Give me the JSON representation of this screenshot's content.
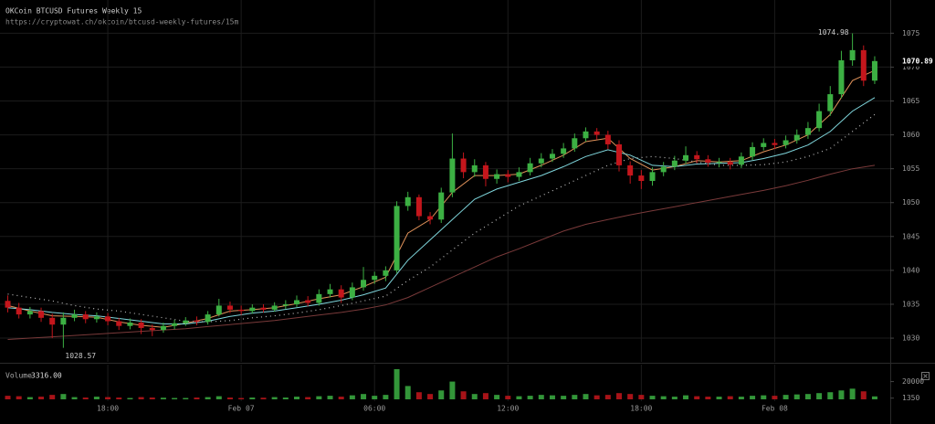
{
  "chart_data": {
    "type": "candlestick",
    "title": "OKCoin BTCUSD Futures Weekly 15",
    "subtitle": "https://cryptowat.ch/okcoin/btcusd-weekly-futures/15m",
    "up_color": "#3cb043",
    "down_color": "#c4161c",
    "grid": true,
    "xlim": [
      -4.85,
      35.2
    ],
    "xticks": [
      {
        "value": 0,
        "label": "18:00"
      },
      {
        "value": 6,
        "label": "Feb 07"
      },
      {
        "value": 12,
        "label": "06:00"
      },
      {
        "value": 18,
        "label": "12:00"
      },
      {
        "value": 24,
        "label": "18:00"
      },
      {
        "value": 30,
        "label": "Feb 08"
      }
    ],
    "ylim": [
      1026.5,
      1079.9
    ],
    "yticks": [
      1030,
      1035,
      1040,
      1045,
      1050,
      1055,
      1060,
      1065,
      1070,
      1075
    ],
    "x": [
      -4.5,
      -4,
      -3.5,
      -3,
      -2.5,
      -2,
      -1.5,
      -1,
      -0.5,
      0,
      0.5,
      1,
      1.5,
      2,
      2.5,
      3,
      3.5,
      4,
      4.5,
      5,
      5.5,
      6,
      6.5,
      7,
      7.5,
      8,
      8.5,
      9,
      9.5,
      10,
      10.5,
      11,
      11.5,
      12,
      12.5,
      13,
      13.5,
      14,
      14.5,
      15,
      15.5,
      16,
      16.5,
      17,
      17.5,
      18,
      18.5,
      19,
      19.5,
      20,
      20.5,
      21,
      21.5,
      22,
      22.5,
      23,
      23.5,
      24,
      24.5,
      25,
      25.5,
      26,
      26.5,
      27,
      27.5,
      28,
      28.5,
      29,
      29.5,
      30,
      30.5,
      31,
      31.5,
      32,
      32.5,
      33,
      33.5,
      34,
      34.5
    ],
    "open": [
      1035.5,
      1034.5,
      1033.5,
      1034,
      1033,
      1032,
      1033,
      1033.5,
      1032.8,
      1033.2,
      1032.5,
      1031.8,
      1032.3,
      1031.5,
      1031.2,
      1031.8,
      1032.2,
      1032.6,
      1032.4,
      1033.5,
      1034.8,
      1034.2,
      1034.0,
      1034.5,
      1034.2,
      1034.8,
      1035.0,
      1035.6,
      1035.2,
      1036.5,
      1037.2,
      1036.0,
      1037.5,
      1038.6,
      1039.2,
      1040.0,
      1049.5,
      1050.8,
      1048.0,
      1047.5,
      1051.5,
      1056.5,
      1054.5,
      1055.5,
      1053.5,
      1054.2,
      1053.8,
      1054.5,
      1055.8,
      1056.5,
      1057.2,
      1058.0,
      1059.5,
      1060.5,
      1060.0,
      1058.6,
      1055.5,
      1054.0,
      1053.2,
      1054.5,
      1055.3,
      1056.2,
      1057.0,
      1056.4,
      1055.9,
      1056.0,
      1055.6,
      1056.8,
      1058.2,
      1058.8,
      1058.5,
      1059.2,
      1060.0,
      1061.0,
      1063.5,
      1066.0,
      1071.0,
      1072.5,
      1068.0
    ],
    "high": [
      1036.3,
      1035.2,
      1034.6,
      1034.5,
      1033.6,
      1033.8,
      1034.2,
      1034.0,
      1033.8,
      1033.7,
      1033.0,
      1032.9,
      1032.8,
      1032.0,
      1032.3,
      1032.7,
      1033.1,
      1033.2,
      1034.0,
      1035.8,
      1035.4,
      1034.8,
      1035.0,
      1035.0,
      1035.3,
      1035.6,
      1036.3,
      1036.2,
      1037.2,
      1038.0,
      1037.8,
      1038.2,
      1040.5,
      1039.8,
      1040.6,
      1050.2,
      1051.6,
      1051.2,
      1048.6,
      1052.2,
      1060.2,
      1057.4,
      1056.4,
      1056.0,
      1054.9,
      1054.8,
      1055.2,
      1056.6,
      1057.3,
      1057.9,
      1058.8,
      1060.2,
      1061.1,
      1061.0,
      1060.6,
      1059.2,
      1056.1,
      1054.8,
      1055.2,
      1056.0,
      1056.9,
      1058.3,
      1057.6,
      1057.0,
      1056.6,
      1056.6,
      1057.4,
      1058.9,
      1059.5,
      1059.4,
      1059.9,
      1060.8,
      1061.9,
      1064.6,
      1067.2,
      1072.4,
      1074.98,
      1073.2,
      1071.6
    ],
    "low": [
      1033.8,
      1032.9,
      1032.9,
      1032.4,
      1030.0,
      1028.57,
      1032.5,
      1032.2,
      1032.3,
      1031.9,
      1031.2,
      1031.3,
      1030.6,
      1030.3,
      1030.8,
      1031.3,
      1031.8,
      1031.9,
      1032.0,
      1033.2,
      1033.7,
      1033.4,
      1033.6,
      1033.8,
      1033.9,
      1034.3,
      1034.6,
      1034.7,
      1034.8,
      1036.0,
      1035.2,
      1035.6,
      1037.0,
      1038.0,
      1038.4,
      1039.6,
      1048.8,
      1047.4,
      1046.8,
      1047.0,
      1050.8,
      1053.6,
      1053.8,
      1052.4,
      1052.8,
      1053.0,
      1053.2,
      1054.0,
      1055.2,
      1056.0,
      1056.6,
      1057.5,
      1059.0,
      1059.3,
      1057.9,
      1054.6,
      1052.8,
      1052.0,
      1052.5,
      1053.9,
      1054.8,
      1055.7,
      1055.8,
      1055.3,
      1055.2,
      1054.9,
      1055.1,
      1056.3,
      1057.7,
      1057.9,
      1058.0,
      1058.7,
      1059.4,
      1060.5,
      1062.8,
      1065.4,
      1070.2,
      1067.2,
      1067.5
    ],
    "close": [
      1034.5,
      1033.5,
      1034,
      1033,
      1032,
      1033,
      1033.5,
      1032.8,
      1033.2,
      1032.5,
      1031.8,
      1032.3,
      1031.5,
      1031.2,
      1031.8,
      1032.2,
      1032.6,
      1032.4,
      1033.5,
      1034.8,
      1034.2,
      1034.0,
      1034.5,
      1034.2,
      1034.8,
      1035.0,
      1035.6,
      1035.2,
      1036.5,
      1037.2,
      1036.0,
      1037.5,
      1038.6,
      1039.2,
      1040.0,
      1049.5,
      1050.8,
      1048.0,
      1047.5,
      1051.5,
      1056.5,
      1054.5,
      1055.5,
      1053.5,
      1054.2,
      1053.8,
      1054.5,
      1055.8,
      1056.5,
      1057.2,
      1058.0,
      1059.5,
      1060.5,
      1060.0,
      1058.6,
      1055.5,
      1054.0,
      1053.2,
      1054.5,
      1055.3,
      1056.2,
      1057.0,
      1056.4,
      1055.9,
      1056.0,
      1055.6,
      1056.8,
      1058.2,
      1058.8,
      1058.5,
      1059.2,
      1060.0,
      1061.0,
      1063.5,
      1066.0,
      1071.0,
      1072.5,
      1068.0,
      1070.89
    ],
    "overlay_x": [
      -4.5,
      -3.5,
      -2.5,
      -1.5,
      -0.5,
      0.5,
      1.5,
      2.5,
      3.5,
      4.5,
      5.5,
      6.5,
      7.5,
      8.5,
      9.5,
      10.5,
      11.5,
      12.5,
      13.5,
      14.5,
      15.5,
      16.5,
      17.5,
      18.5,
      19.5,
      20.5,
      21.5,
      22.5,
      23.5,
      24.5,
      25.5,
      26.5,
      27.5,
      28.5,
      29.5,
      30.5,
      31.5,
      32.5,
      33.5,
      34.5
    ],
    "overlays": [
      {
        "color": "#e0925a",
        "dash": "none",
        "values": [
          1034.8,
          1034.0,
          1033.3,
          1033.2,
          1033.1,
          1032.4,
          1031.9,
          1031.6,
          1032.2,
          1032.9,
          1034.0,
          1034.2,
          1034.5,
          1035.1,
          1035.8,
          1036.4,
          1037.6,
          1039.0,
          1045.5,
          1047.5,
          1051.5,
          1054.0,
          1054.0,
          1054.2,
          1055.5,
          1057.0,
          1059.0,
          1059.5,
          1056.5,
          1054.8,
          1055.3,
          1056.2,
          1056.0,
          1056.2,
          1057.5,
          1058.5,
          1060.0,
          1063.0,
          1068.0,
          1069.5
        ]
      },
      {
        "color": "#7fd6dc",
        "dash": "none",
        "values": [
          1034.5,
          1034.2,
          1033.8,
          1033.5,
          1033.3,
          1032.9,
          1032.5,
          1032.1,
          1032.1,
          1032.5,
          1033.2,
          1033.7,
          1034.0,
          1034.5,
          1035.0,
          1035.6,
          1036.4,
          1037.4,
          1041.5,
          1044.5,
          1047.5,
          1050.5,
          1052.0,
          1053.0,
          1054.0,
          1055.3,
          1056.8,
          1057.8,
          1057.0,
          1055.5,
          1055.3,
          1055.7,
          1055.8,
          1055.9,
          1056.5,
          1057.3,
          1058.5,
          1060.5,
          1063.5,
          1065.5
        ]
      },
      {
        "color": "#bbbbbb",
        "dash": "1 4",
        "values": [
          1036.5,
          1036.0,
          1035.5,
          1034.8,
          1034.3,
          1034.0,
          1033.5,
          1033.0,
          1032.5,
          1032.4,
          1032.6,
          1033.0,
          1033.3,
          1033.7,
          1034.2,
          1034.8,
          1035.5,
          1036.2,
          1038.5,
          1040.5,
          1043.0,
          1045.5,
          1047.5,
          1049.5,
          1051.0,
          1052.5,
          1054.0,
          1055.5,
          1056.5,
          1056.8,
          1056.5,
          1056.0,
          1055.5,
          1055.5,
          1055.6,
          1056.0,
          1056.8,
          1058.0,
          1060.5,
          1063.0
        ]
      },
      {
        "color": "#7a3a3a",
        "dash": "none",
        "values": [
          1029.8,
          1030.0,
          1030.2,
          1030.4,
          1030.6,
          1030.8,
          1031.0,
          1031.2,
          1031.4,
          1031.7,
          1032.0,
          1032.3,
          1032.6,
          1033.0,
          1033.4,
          1033.8,
          1034.3,
          1034.9,
          1036.0,
          1037.5,
          1039.0,
          1040.5,
          1042.0,
          1043.2,
          1044.5,
          1045.8,
          1046.8,
          1047.5,
          1048.2,
          1048.8,
          1049.4,
          1050.0,
          1050.6,
          1051.2,
          1051.8,
          1052.5,
          1053.3,
          1054.2,
          1055.0,
          1055.5
        ]
      }
    ],
    "volume": {
      "label": "Volume",
      "current": {
        "value": 3316,
        "label": "3316.00"
      },
      "ylim": [
        0,
        35000
      ],
      "yticks": [
        20000,
        1350
      ],
      "values": [
        4000,
        3500,
        2500,
        3000,
        5000,
        6000,
        2500,
        2000,
        3000,
        2500,
        2000,
        1500,
        2500,
        2000,
        1800,
        1500,
        1500,
        2000,
        2500,
        3500,
        2000,
        1500,
        2000,
        1800,
        2500,
        2000,
        3000,
        2500,
        3500,
        4000,
        3000,
        4500,
        6000,
        4000,
        5000,
        34000,
        15000,
        8000,
        6000,
        10000,
        20000,
        9000,
        6000,
        7000,
        5000,
        4000,
        3500,
        4000,
        5000,
        4500,
        4000,
        5000,
        6000,
        4500,
        5000,
        7000,
        6000,
        5000,
        4000,
        3500,
        3000,
        4500,
        3500,
        3000,
        3000,
        3500,
        3000,
        4000,
        4500,
        4000,
        5000,
        5500,
        6000,
        7000,
        8000,
        10000,
        12000,
        9000,
        3316
      ]
    }
  }
}
